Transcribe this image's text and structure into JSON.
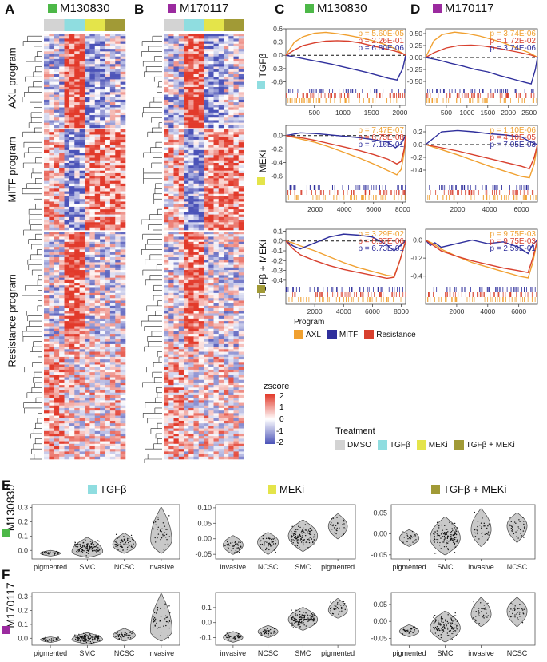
{
  "colors": {
    "green": "#4db848",
    "purple": "#9b2a9f",
    "dmso": "#d3d3d3",
    "tgfb": "#8fdde0",
    "meki": "#e4e44a",
    "tgfb_meki": "#a19a36",
    "axl": "#f0a030",
    "mitf": "#2f2f9c",
    "resistance": "#d8402e",
    "high": "#e23a2b",
    "low": "#4b53b8"
  },
  "panels": {
    "A": {
      "letter": "A",
      "title": "M130830"
    },
    "B": {
      "letter": "B",
      "title": "M170117"
    },
    "C": {
      "letter": "C",
      "title": "M130830"
    },
    "D": {
      "letter": "D",
      "title": "M170117"
    },
    "E": {
      "letter": "E",
      "row_label": "M130830"
    },
    "F": {
      "letter": "F",
      "row_label": "M170117"
    }
  },
  "heatmap": {
    "programs": [
      "AXL program",
      "MITF program",
      "Resistance program"
    ]
  },
  "zscore_legend": {
    "title": "zscore",
    "ticks": [
      "2",
      "1",
      "0",
      "-1",
      "-2"
    ]
  },
  "treatment_legend": {
    "title": "Treatment",
    "items": [
      "DMSO",
      "TGFβ",
      "MEKi",
      "TGFβ + MEKi"
    ]
  },
  "program_legend": {
    "title": "Program",
    "items": [
      "AXL",
      "MITF",
      "Resistance"
    ]
  },
  "gsea_row_labels": [
    "TGFβ",
    "MEKi",
    "TGFβ + MEKi"
  ],
  "chart_data": [
    {
      "type": "line",
      "name": "GSEA C TGFβ",
      "xlim": [
        0,
        2100
      ],
      "ylim": [
        -0.7,
        0.6
      ],
      "yticks": [
        -0.6,
        -0.3,
        0.0,
        0.3,
        0.6
      ],
      "ytick_labels": [
        "-0.6",
        "-0.3",
        "0.0",
        "0.3",
        "0.6"
      ],
      "xticks": [
        500,
        1000,
        1500,
        2000
      ],
      "pvalues": [
        "p = 5.60E-05",
        "p = 2.26E-01",
        "p = 6.80E-06"
      ],
      "series": [
        {
          "name": "AXL",
          "x": [
            0,
            150,
            300,
            500,
            700,
            900,
            1100,
            1300,
            1500,
            1700,
            1900,
            2000,
            2100
          ],
          "y": [
            0,
            0.3,
            0.42,
            0.5,
            0.52,
            0.49,
            0.45,
            0.4,
            0.34,
            0.26,
            0.16,
            0.08,
            0
          ]
        },
        {
          "name": "MITF",
          "x": [
            0,
            200,
            400,
            600,
            800,
            1000,
            1200,
            1400,
            1600,
            1800,
            1950,
            2050,
            2100
          ],
          "y": [
            0,
            -0.05,
            -0.1,
            -0.15,
            -0.2,
            -0.26,
            -0.32,
            -0.38,
            -0.45,
            -0.52,
            -0.56,
            -0.3,
            0
          ]
        },
        {
          "name": "Resistance",
          "x": [
            0,
            150,
            300,
            500,
            700,
            900,
            1100,
            1300,
            1500,
            1700,
            1900,
            2050,
            2100
          ],
          "y": [
            0,
            0.12,
            0.22,
            0.28,
            0.32,
            0.33,
            0.32,
            0.28,
            0.22,
            0.16,
            0.1,
            0.04,
            0
          ]
        }
      ]
    },
    {
      "type": "line",
      "name": "GSEA D TGFβ",
      "xlim": [
        0,
        2700
      ],
      "ylim": [
        -0.6,
        0.6
      ],
      "yticks": [
        -0.5,
        -0.25,
        0.0,
        0.25,
        0.5
      ],
      "ytick_labels": [
        "-0.50",
        "-0.25",
        "0.00",
        "0.25",
        "0.50"
      ],
      "xticks": [
        500,
        1000,
        1500,
        2000,
        2500
      ],
      "pvalues": [
        "p = 3.74E-06",
        "p = 1.72E-02",
        "p = 3.74E-06"
      ],
      "series": [
        {
          "name": "AXL",
          "x": [
            0,
            200,
            400,
            700,
            1000,
            1300,
            1600,
            1900,
            2200,
            2500,
            2650,
            2700
          ],
          "y": [
            0,
            0.35,
            0.48,
            0.53,
            0.5,
            0.45,
            0.38,
            0.3,
            0.2,
            0.1,
            0.03,
            0
          ]
        },
        {
          "name": "MITF",
          "x": [
            0,
            300,
            600,
            900,
            1200,
            1500,
            1800,
            2100,
            2400,
            2550,
            2650,
            2700
          ],
          "y": [
            0,
            -0.05,
            -0.12,
            -0.18,
            -0.25,
            -0.3,
            -0.38,
            -0.45,
            -0.52,
            -0.55,
            -0.25,
            0
          ]
        },
        {
          "name": "Resistance",
          "x": [
            0,
            200,
            500,
            800,
            1100,
            1400,
            1700,
            2000,
            2300,
            2550,
            2700
          ],
          "y": [
            0,
            0.1,
            0.2,
            0.25,
            0.26,
            0.24,
            0.2,
            0.15,
            0.1,
            0.05,
            0
          ]
        }
      ]
    },
    {
      "type": "line",
      "name": "GSEA C MEKi",
      "xlim": [
        0,
        8200
      ],
      "ylim": [
        -0.7,
        0.15
      ],
      "yticks": [
        -0.6,
        -0.4,
        -0.2,
        0.0
      ],
      "ytick_labels": [
        "-0.6",
        "-0.4",
        "-0.2",
        "0.0"
      ],
      "xticks": [
        2000,
        4000,
        6000,
        8000
      ],
      "pvalues": [
        "p = 7.47E-07",
        "p = 6.75E-08",
        "p = 7.16E-01"
      ],
      "series": [
        {
          "name": "AXL",
          "x": [
            0,
            1000,
            2000,
            3000,
            4000,
            5000,
            6000,
            7000,
            7600,
            7900,
            8100,
            8200
          ],
          "y": [
            0,
            -0.05,
            -0.1,
            -0.17,
            -0.25,
            -0.33,
            -0.42,
            -0.52,
            -0.58,
            -0.5,
            -0.25,
            0
          ]
        },
        {
          "name": "MITF",
          "x": [
            0,
            500,
            1000,
            2000,
            3000,
            4000,
            5000,
            6000,
            7000,
            7500,
            7900,
            8200
          ],
          "y": [
            0,
            0.02,
            0.04,
            0.03,
            0.01,
            -0.01,
            -0.03,
            -0.06,
            -0.1,
            -0.18,
            -0.12,
            0
          ]
        },
        {
          "name": "Resistance",
          "x": [
            0,
            1000,
            2000,
            3000,
            4000,
            5000,
            6000,
            7000,
            7600,
            7900,
            8100,
            8200
          ],
          "y": [
            0,
            -0.03,
            -0.07,
            -0.12,
            -0.17,
            -0.22,
            -0.28,
            -0.35,
            -0.42,
            -0.38,
            -0.2,
            0
          ]
        }
      ]
    },
    {
      "type": "line",
      "name": "GSEA D MEKi",
      "xlim": [
        0,
        7000
      ],
      "ylim": [
        -0.6,
        0.3
      ],
      "yticks": [
        -0.4,
        -0.2,
        0.0,
        0.2
      ],
      "ytick_labels": [
        "-0.4",
        "-0.2",
        "0.0",
        "0.2"
      ],
      "xticks": [
        2000,
        4000,
        6000
      ],
      "pvalues": [
        "p = 1.10E-06",
        "p = 4.10E-05",
        "p = 7.05E-03"
      ],
      "series": [
        {
          "name": "AXL",
          "x": [
            0,
            1000,
            2000,
            3000,
            4000,
            5000,
            6000,
            6500,
            6800,
            7000
          ],
          "y": [
            0,
            -0.08,
            -0.16,
            -0.25,
            -0.34,
            -0.42,
            -0.5,
            -0.52,
            -0.3,
            0
          ]
        },
        {
          "name": "MITF",
          "x": [
            0,
            500,
            1000,
            2000,
            3000,
            4000,
            5000,
            6000,
            6500,
            6800,
            7000
          ],
          "y": [
            0,
            0.1,
            0.2,
            0.22,
            0.2,
            0.17,
            0.15,
            0.12,
            0.05,
            0.02,
            0
          ]
        },
        {
          "name": "Resistance",
          "x": [
            0,
            1000,
            2000,
            3000,
            4000,
            5000,
            6000,
            6500,
            6800,
            7000
          ],
          "y": [
            0,
            -0.05,
            -0.1,
            -0.16,
            -0.22,
            -0.28,
            -0.34,
            -0.38,
            -0.2,
            0
          ]
        }
      ]
    },
    {
      "type": "line",
      "name": "GSEA C TGFβ + MEKi",
      "xlim": [
        0,
        8300
      ],
      "ylim": [
        -0.45,
        0.12
      ],
      "yticks": [
        -0.4,
        -0.3,
        -0.2,
        -0.1,
        0.0,
        0.1
      ],
      "ytick_labels": [
        "-0.4",
        "-0.3",
        "-0.2",
        "-0.1",
        "0.0",
        "0.1"
      ],
      "xticks": [
        2000,
        4000,
        6000,
        8000
      ],
      "pvalues": [
        "p = 3.29E-02",
        "p = 8.37E-06",
        "p = 6.73E-01"
      ],
      "series": [
        {
          "name": "AXL",
          "x": [
            0,
            500,
            1000,
            2000,
            3000,
            4000,
            5000,
            6000,
            7000,
            7500,
            7900,
            8300
          ],
          "y": [
            0,
            -0.02,
            -0.05,
            -0.1,
            -0.16,
            -0.22,
            -0.27,
            -0.31,
            -0.35,
            -0.36,
            -0.2,
            0
          ]
        },
        {
          "name": "MITF",
          "x": [
            0,
            500,
            1000,
            2000,
            3000,
            4000,
            5000,
            6000,
            7000,
            7500,
            7900,
            8300
          ],
          "y": [
            0,
            -0.05,
            -0.08,
            -0.02,
            0.04,
            0.07,
            0.06,
            0.04,
            -0.04,
            -0.1,
            -0.05,
            0
          ]
        },
        {
          "name": "Resistance",
          "x": [
            0,
            500,
            1000,
            2000,
            3000,
            4000,
            5000,
            6000,
            7000,
            7500,
            7900,
            8300
          ],
          "y": [
            0,
            -0.08,
            -0.14,
            -0.2,
            -0.25,
            -0.29,
            -0.32,
            -0.35,
            -0.38,
            -0.37,
            -0.2,
            0
          ]
        }
      ]
    },
    {
      "type": "line",
      "name": "GSEA D TGFβ + MEKi",
      "xlim": [
        0,
        7200
      ],
      "ylim": [
        -0.5,
        0.12
      ],
      "yticks": [
        -0.4,
        -0.2,
        0.0
      ],
      "ytick_labels": [
        "-0.4",
        "-0.2",
        "0.0"
      ],
      "xticks": [
        2000,
        4000,
        6000
      ],
      "pvalues": [
        "p = 9.75E-03",
        "p = 9.75E-03",
        "p = 2.59E-01"
      ],
      "series": [
        {
          "name": "AXL",
          "x": [
            0,
            500,
            1000,
            2000,
            3000,
            4000,
            5000,
            6000,
            6600,
            6900,
            7200
          ],
          "y": [
            0,
            -0.04,
            -0.1,
            -0.18,
            -0.25,
            -0.3,
            -0.35,
            -0.4,
            -0.42,
            -0.25,
            0
          ]
        },
        {
          "name": "MITF",
          "x": [
            0,
            300,
            600,
            1000,
            2000,
            3000,
            4000,
            5000,
            6000,
            6600,
            6900,
            7200
          ],
          "y": [
            0,
            -0.06,
            -0.03,
            -0.08,
            -0.04,
            0.0,
            -0.04,
            -0.02,
            -0.08,
            -0.15,
            -0.05,
            0
          ]
        },
        {
          "name": "Resistance",
          "x": [
            0,
            500,
            1000,
            2000,
            3000,
            4000,
            5000,
            6000,
            6600,
            6900,
            7200
          ],
          "y": [
            0,
            -0.06,
            -0.12,
            -0.18,
            -0.23,
            -0.27,
            -0.31,
            -0.34,
            -0.36,
            -0.2,
            0
          ]
        }
      ]
    },
    {
      "type": "violin",
      "name": "E TGFβ",
      "title": "TGFβ",
      "categories": [
        "pigmented",
        "SMC",
        "NCSC",
        "invasive"
      ],
      "ylim": [
        -0.06,
        0.32
      ],
      "yticks": [
        0.0,
        0.1,
        0.2,
        0.3
      ],
      "ytick_labels": [
        "0.00",
        "0.10",
        "0.20",
        "0.30"
      ],
      "ytick_labels_text": [
        "0.0",
        "0.1",
        "0.2",
        "0.3"
      ],
      "groups": [
        {
          "median": -0.02,
          "min": -0.04,
          "max": 0.0,
          "points": 30
        },
        {
          "median": -0.01,
          "min": -0.05,
          "max": 0.09,
          "points": 160
        },
        {
          "median": 0.04,
          "min": -0.02,
          "max": 0.12,
          "points": 60
        },
        {
          "median": 0.07,
          "min": -0.02,
          "max": 0.3,
          "points": 40
        }
      ]
    },
    {
      "type": "violin",
      "name": "E MEKi",
      "title": "MEKi",
      "categories": [
        "invasive",
        "NCSC",
        "SMC",
        "pigmented"
      ],
      "ylim": [
        -0.065,
        0.11
      ],
      "yticks": [
        -0.05,
        0.0,
        0.05,
        0.1
      ],
      "ytick_labels_text": [
        "-0.05",
        "0.00",
        "0.05",
        "0.10"
      ],
      "groups": [
        {
          "median": -0.02,
          "min": -0.05,
          "max": 0.01,
          "points": 40
        },
        {
          "median": -0.01,
          "min": -0.05,
          "max": 0.02,
          "points": 50
        },
        {
          "median": 0.01,
          "min": -0.04,
          "max": 0.06,
          "points": 150
        },
        {
          "median": 0.04,
          "min": 0.0,
          "max": 0.08,
          "points": 30
        }
      ]
    },
    {
      "type": "violin",
      "name": "E TGFβ + MEKi",
      "title": "TGFβ + MEKi",
      "categories": [
        "pigmented",
        "SMC",
        "invasive",
        "NCSC"
      ],
      "ylim": [
        -0.06,
        0.07
      ],
      "yticks": [
        -0.05,
        0.0,
        0.05
      ],
      "ytick_labels_text": [
        "-0.05",
        "0.00",
        "0.05"
      ],
      "groups": [
        {
          "median": -0.01,
          "min": -0.03,
          "max": 0.01,
          "points": 30
        },
        {
          "median": -0.01,
          "min": -0.05,
          "max": 0.04,
          "points": 140
        },
        {
          "median": 0.01,
          "min": -0.03,
          "max": 0.06,
          "points": 35
        },
        {
          "median": 0.02,
          "min": -0.02,
          "max": 0.05,
          "points": 35
        }
      ]
    },
    {
      "type": "violin",
      "name": "F TGFβ",
      "categories": [
        "pigmented",
        "SMC",
        "NCSC",
        "invasive"
      ],
      "ylim": [
        -0.05,
        0.33
      ],
      "yticks": [
        0.0,
        0.1,
        0.2,
        0.3
      ],
      "ytick_labels_text": [
        "0.0",
        "0.1",
        "0.2",
        "0.3"
      ],
      "groups": [
        {
          "median": -0.01,
          "min": -0.03,
          "max": 0.01,
          "points": 30
        },
        {
          "median": -0.01,
          "min": -0.04,
          "max": 0.04,
          "points": 180
        },
        {
          "median": 0.02,
          "min": -0.02,
          "max": 0.07,
          "points": 50
        },
        {
          "median": 0.05,
          "min": -0.02,
          "max": 0.32,
          "points": 45
        }
      ]
    },
    {
      "type": "violin",
      "name": "F MEKi",
      "categories": [
        "invasive",
        "NCSC",
        "SMC",
        "pigmented"
      ],
      "ylim": [
        -0.15,
        0.2
      ],
      "yticks": [
        -0.1,
        0.0,
        0.1
      ],
      "ytick_labels_text": [
        "-0.1",
        "0.0",
        "0.1"
      ],
      "groups": [
        {
          "median": -0.1,
          "min": -0.13,
          "max": -0.06,
          "points": 35
        },
        {
          "median": -0.06,
          "min": -0.1,
          "max": -0.02,
          "points": 40
        },
        {
          "median": 0.02,
          "min": -0.05,
          "max": 0.1,
          "points": 150
        },
        {
          "median": 0.08,
          "min": 0.03,
          "max": 0.16,
          "points": 30
        }
      ]
    },
    {
      "type": "violin",
      "name": "F TGFβ + MEKi",
      "categories": [
        "pigmented",
        "SMC",
        "invasive",
        "NCSC"
      ],
      "ylim": [
        -0.07,
        0.085
      ],
      "yticks": [
        -0.05,
        0.0,
        0.05
      ],
      "ytick_labels_text": [
        "-0.05",
        "0.00",
        "0.05"
      ],
      "groups": [
        {
          "median": -0.03,
          "min": -0.045,
          "max": -0.01,
          "points": 30
        },
        {
          "median": -0.02,
          "min": -0.06,
          "max": 0.03,
          "points": 140
        },
        {
          "median": 0.02,
          "min": -0.015,
          "max": 0.07,
          "points": 35
        },
        {
          "median": 0.03,
          "min": -0.015,
          "max": 0.07,
          "points": 35
        }
      ]
    }
  ]
}
